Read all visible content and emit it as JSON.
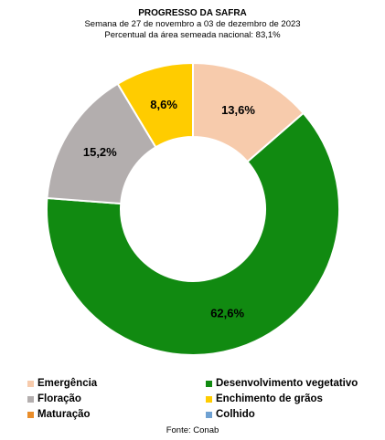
{
  "chart_data": {
    "type": "pie",
    "title": "PROGRESSO DA SAFRA",
    "subtitle_1": "Semana de 27 de novembro a 03 de dezembro de 2023",
    "subtitle_2": "Percentual da área semeada nacional: 83,1%",
    "slices": [
      {
        "name": "Emergência",
        "value": 13.6,
        "label": "13,6%",
        "color": "#F7CBAC"
      },
      {
        "name": "Desenvolvimento vegetativo",
        "value": 62.6,
        "label": "62,6%",
        "color": "#118A11"
      },
      {
        "name": "Floração",
        "value": 15.2,
        "label": "15,2%",
        "color": "#B3AEAE"
      },
      {
        "name": "Enchimento de grãos",
        "value": 8.6,
        "label": "8,6%",
        "color": "#FFCC00"
      },
      {
        "name": "Maturação",
        "value": 0,
        "label": "",
        "color": "#E98D2A"
      },
      {
        "name": "Colhido",
        "value": 0,
        "label": "",
        "color": "#6FA1D2"
      }
    ],
    "legend": {
      "items": [
        {
          "name": "Emergência",
          "color": "#F7CBAC"
        },
        {
          "name": "Desenvolvimento vegetativo",
          "color": "#118A11"
        },
        {
          "name": "Floração",
          "color": "#B3AEAE"
        },
        {
          "name": "Enchimento de grãos",
          "color": "#FFCC00"
        },
        {
          "name": "Maturação",
          "color": "#E98D2A"
        },
        {
          "name": "Colhido",
          "color": "#6FA1D2"
        }
      ],
      "placement": "bottom"
    },
    "source": "Fonte: Conab"
  }
}
